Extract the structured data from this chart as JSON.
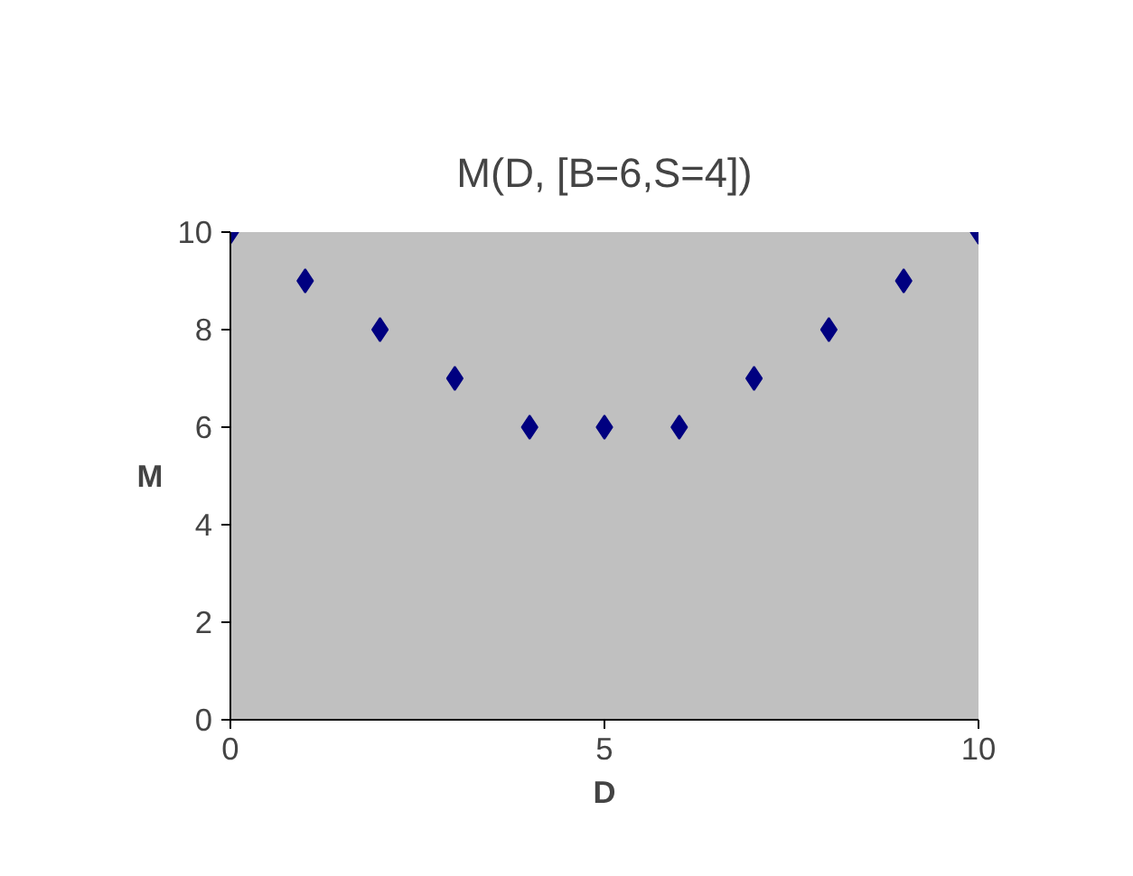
{
  "chart_data": {
    "type": "scatter",
    "title": "M(D, [B=6,S=4])",
    "xlabel": "D",
    "ylabel": "M",
    "x": [
      0,
      1,
      2,
      3,
      4,
      5,
      6,
      7,
      8,
      9,
      10
    ],
    "series": [
      {
        "color": "#000080",
        "values": [
          10,
          9,
          8,
          7,
          6,
          6,
          6,
          7,
          8,
          9,
          10
        ]
      }
    ],
    "marker": "diamond",
    "xlim": [
      0,
      10
    ],
    "ylim": [
      0,
      10
    ],
    "xticks": [
      0,
      5,
      10
    ],
    "yticks": [
      0,
      2,
      4,
      6,
      8,
      10
    ],
    "grid": false
  }
}
